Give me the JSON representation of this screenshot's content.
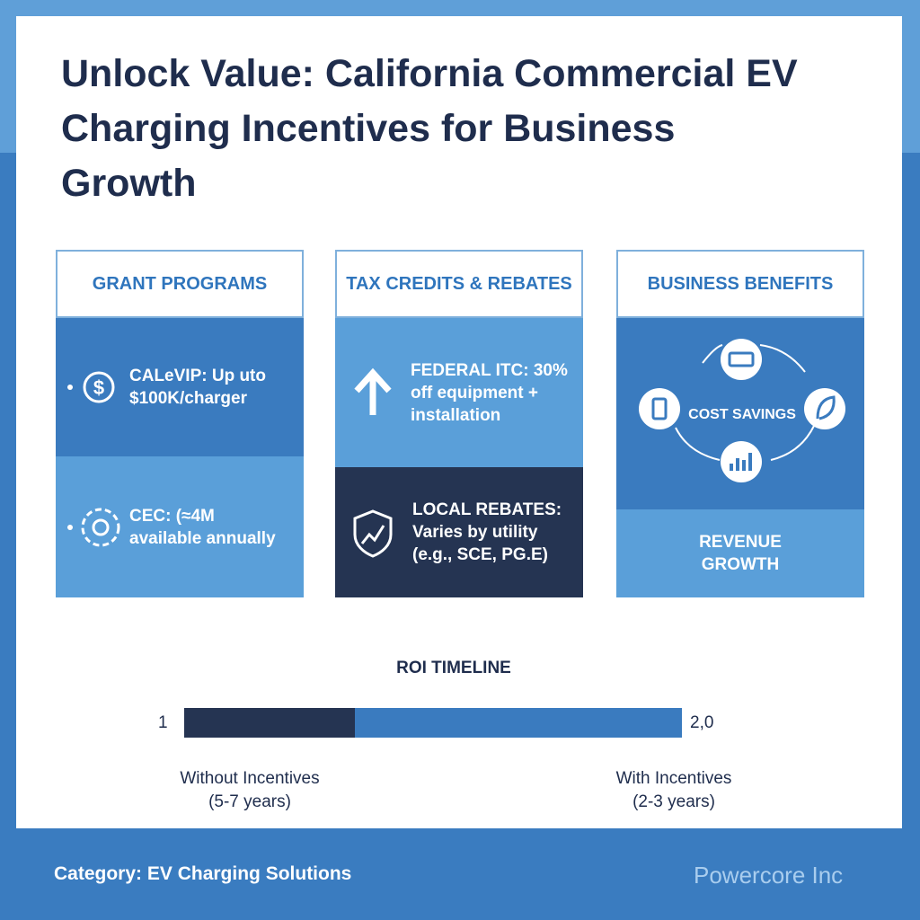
{
  "title": "Unlock Value: California Commercial EV Charging Incentives for Business Growth",
  "panels": [
    {
      "heading": "GRANT PROGRAMS",
      "items": [
        "CALeVIP: Up uto $100K/charger",
        "CEC: (≈4M available annually"
      ]
    },
    {
      "heading": "TAX CREDITS & REBATES",
      "items": [
        "FEDERAL ITC: 30% off equipment + installation",
        "LOCAL REBATES: Varies by utility (e.g., SCE, PG.E)"
      ]
    },
    {
      "heading": "BUSINESS BENEFITS",
      "items": [
        "COST SAVINGS",
        "REVENUE GROWTH"
      ]
    }
  ],
  "roi": {
    "title": "ROI TIMELINE",
    "start_label": "1",
    "end_label": "2,0",
    "without": [
      "Without Incentives",
      "(5-7 years)"
    ],
    "with": [
      "With Incentives",
      "(2-3 years)"
    ]
  },
  "footer": {
    "category": "Category: EV Charging Solutions",
    "brand": "Powercore Inc"
  }
}
